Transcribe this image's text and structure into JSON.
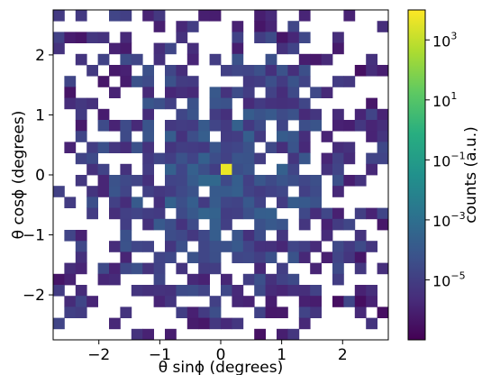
{
  "chart_data": {
    "type": "heatmap",
    "title": "",
    "xlabel": "θ sinϕ (degrees)",
    "ylabel": "θ cosϕ (degrees)",
    "colorbar_label": "counts (a.u.)",
    "colormap": "viridis",
    "color_scale": "log",
    "xlim": [
      -2.75,
      2.75
    ],
    "ylim": [
      -2.75,
      2.75
    ],
    "bins": 30,
    "x_ticks": [
      -2,
      -1,
      0,
      1,
      2
    ],
    "y_ticks": [
      -2,
      -1,
      0,
      1,
      2
    ],
    "x_tick_labels": [
      "−2",
      "−1",
      "0",
      "1",
      "2"
    ],
    "y_tick_labels": [
      "−2",
      "−1",
      "0",
      "1",
      "2"
    ],
    "colorbar_range": [
      1e-07,
      10000
    ],
    "colorbar_ticks": [
      {
        "value": 1000,
        "label": "10^3"
      },
      {
        "value": 10,
        "label": "10^1"
      },
      {
        "value": 0.1,
        "label": "10^-1"
      },
      {
        "value": 0.001,
        "label": "10^-3"
      },
      {
        "value": 1e-05,
        "label": "10^-5"
      }
    ],
    "grid": false,
    "peak": {
      "x": 0.12,
      "y": 0.1,
      "value": 5000
    }
  }
}
